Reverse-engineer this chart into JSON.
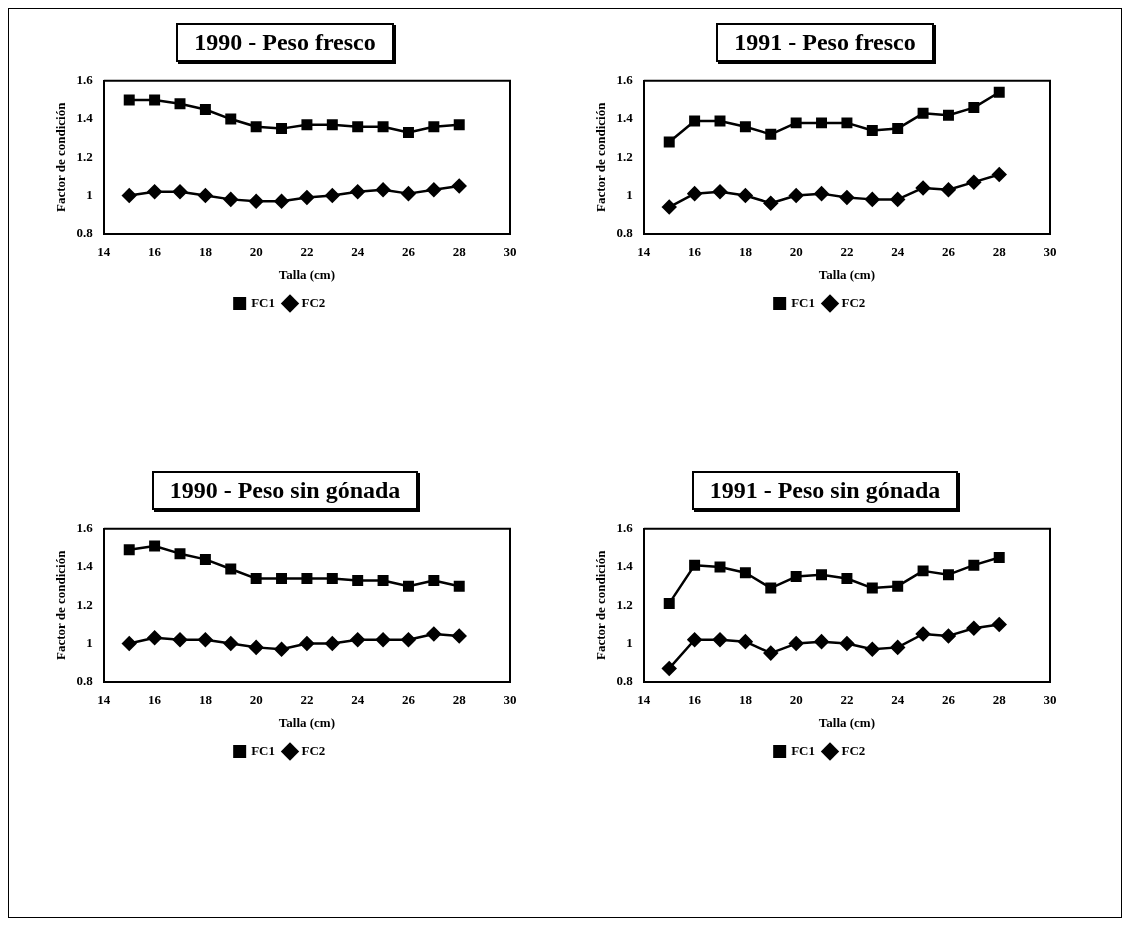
{
  "chart_data": [
    {
      "type": "line",
      "title": "1990 - Peso fresco",
      "xlabel": "Talla (cm)",
      "ylabel": "Factor de condición",
      "x": [
        15,
        16,
        17,
        18,
        19,
        20,
        21,
        22,
        23,
        24,
        25,
        26,
        27,
        28
      ],
      "xlim": [
        14,
        30
      ],
      "xticks": [
        14,
        16,
        18,
        20,
        22,
        24,
        26,
        28,
        30
      ],
      "ylim": [
        0.8,
        1.6
      ],
      "yticks": [
        0.8,
        1,
        1.2,
        1.4,
        1.6
      ],
      "grid": false,
      "legend": "bottom",
      "series": [
        {
          "name": "FC1",
          "color": "#000000",
          "marker": "square",
          "values": [
            1.5,
            1.5,
            1.48,
            1.45,
            1.4,
            1.36,
            1.35,
            1.37,
            1.37,
            1.36,
            1.36,
            1.33,
            1.36,
            1.37
          ]
        },
        {
          "name": "FC2",
          "color": "#000000",
          "marker": "diamond",
          "values": [
            1.0,
            1.02,
            1.02,
            1.0,
            0.98,
            0.97,
            0.97,
            0.99,
            1.0,
            1.02,
            1.03,
            1.01,
            1.03,
            1.05
          ]
        }
      ]
    },
    {
      "type": "line",
      "title": "1991 - Peso fresco",
      "xlabel": "Talla (cm)",
      "ylabel": "Factor de condición",
      "x": [
        15,
        16,
        17,
        18,
        19,
        20,
        21,
        22,
        23,
        24,
        25,
        26,
        27,
        28
      ],
      "xlim": [
        14,
        30
      ],
      "xticks": [
        14,
        16,
        18,
        20,
        22,
        24,
        26,
        28,
        30
      ],
      "ylim": [
        0.8,
        1.6
      ],
      "yticks": [
        0.8,
        1,
        1.2,
        1.4,
        1.6
      ],
      "grid": false,
      "legend": "bottom",
      "series": [
        {
          "name": "FC1",
          "color": "#000000",
          "marker": "square",
          "values": [
            1.28,
            1.39,
            1.39,
            1.36,
            1.32,
            1.38,
            1.38,
            1.38,
            1.34,
            1.35,
            1.43,
            1.42,
            1.46,
            1.54
          ]
        },
        {
          "name": "FC2",
          "color": "#000000",
          "marker": "diamond",
          "values": [
            0.94,
            1.01,
            1.02,
            1.0,
            0.96,
            1.0,
            1.01,
            0.99,
            0.98,
            0.98,
            1.04,
            1.03,
            1.07,
            1.11
          ]
        }
      ]
    },
    {
      "type": "line",
      "title": "1990 - Peso sin gónada",
      "xlabel": "Talla (cm)",
      "ylabel": "Factor de condición",
      "x": [
        15,
        16,
        17,
        18,
        19,
        20,
        21,
        22,
        23,
        24,
        25,
        26,
        27,
        28
      ],
      "xlim": [
        14,
        30
      ],
      "xticks": [
        14,
        16,
        18,
        20,
        22,
        24,
        26,
        28,
        30
      ],
      "ylim": [
        0.8,
        1.6
      ],
      "yticks": [
        0.8,
        1,
        1.2,
        1.4,
        1.6
      ],
      "grid": false,
      "legend": "bottom",
      "series": [
        {
          "name": "FC1",
          "color": "#000000",
          "marker": "square",
          "values": [
            1.49,
            1.51,
            1.47,
            1.44,
            1.39,
            1.34,
            1.34,
            1.34,
            1.34,
            1.33,
            1.33,
            1.3,
            1.33,
            1.3
          ]
        },
        {
          "name": "FC2",
          "color": "#000000",
          "marker": "diamond",
          "values": [
            1.0,
            1.03,
            1.02,
            1.02,
            1.0,
            0.98,
            0.97,
            1.0,
            1.0,
            1.02,
            1.02,
            1.02,
            1.05,
            1.04
          ]
        }
      ]
    },
    {
      "type": "line",
      "title": "1991 - Peso sin gónada",
      "xlabel": "Talla (cm)",
      "ylabel": "Factor de condición",
      "x": [
        15,
        16,
        17,
        18,
        19,
        20,
        21,
        22,
        23,
        24,
        25,
        26,
        27,
        28
      ],
      "xlim": [
        14,
        30
      ],
      "xticks": [
        14,
        16,
        18,
        20,
        22,
        24,
        26,
        28,
        30
      ],
      "ylim": [
        0.8,
        1.6
      ],
      "yticks": [
        0.8,
        1,
        1.2,
        1.4,
        1.6
      ],
      "grid": false,
      "legend": "bottom",
      "series": [
        {
          "name": "FC1",
          "color": "#000000",
          "marker": "square",
          "values": [
            1.21,
            1.41,
            1.4,
            1.37,
            1.29,
            1.35,
            1.36,
            1.34,
            1.29,
            1.3,
            1.38,
            1.36,
            1.41,
            1.45
          ]
        },
        {
          "name": "FC2",
          "color": "#000000",
          "marker": "diamond",
          "values": [
            0.87,
            1.02,
            1.02,
            1.01,
            0.95,
            1.0,
            1.01,
            1.0,
            0.97,
            0.98,
            1.05,
            1.04,
            1.08,
            1.1
          ]
        }
      ]
    }
  ]
}
